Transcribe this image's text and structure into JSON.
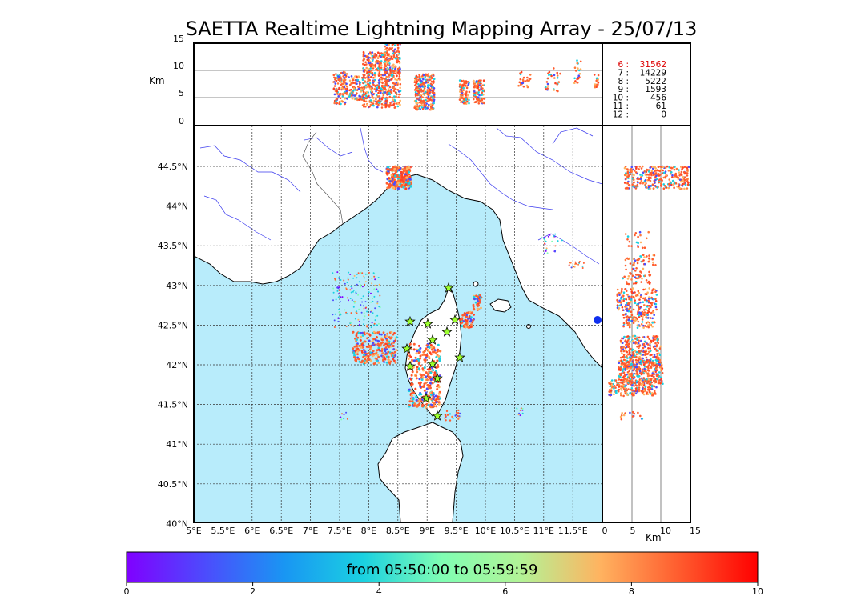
{
  "title": "SAETTA Realtime Lightning Mapping Array - 25/07/13",
  "altitude_panel": {
    "unit": "Km",
    "y_ticks": [
      "15",
      "10",
      "5",
      "0"
    ]
  },
  "side_panel": {
    "unit": "Km",
    "x_ticks": [
      "0",
      "5",
      "10",
      "15"
    ]
  },
  "map": {
    "lon_ticks": [
      "5°E",
      "5.5°E",
      "6°E",
      "6.5°E",
      "7°E",
      "7.5°E",
      "8°E",
      "8.5°E",
      "9°E",
      "9.5°E",
      "10°E",
      "10.5°E",
      "11°E",
      "11.5°E"
    ],
    "lat_ticks": [
      "44.5°N",
      "44°N",
      "43.5°N",
      "43°N",
      "42.5°N",
      "42°N",
      "41.5°N",
      "41°N",
      "40.5°N",
      "40°N"
    ],
    "sea_color": "#b8ecfb"
  },
  "station_counts": [
    {
      "stations": "6",
      "count": "31562",
      "color": "#dd0000"
    },
    {
      "stations": "7",
      "count": "14229",
      "color": "#000000"
    },
    {
      "stations": "8",
      "count": "5222",
      "color": "#000000"
    },
    {
      "stations": "9",
      "count": "1593",
      "color": "#000000"
    },
    {
      "stations": "10",
      "count": "456",
      "color": "#000000"
    },
    {
      "stations": "11",
      "count": "61",
      "color": "#000000"
    },
    {
      "stations": "12",
      "count": "0",
      "color": "#000000"
    }
  ],
  "colorbar": {
    "label": "from 05:50:00 to 05:59:59",
    "ticks": [
      "0",
      "2",
      "4",
      "6",
      "8",
      "10"
    ],
    "colormap": "rainbow"
  },
  "sensor_icon": "star-icon"
}
